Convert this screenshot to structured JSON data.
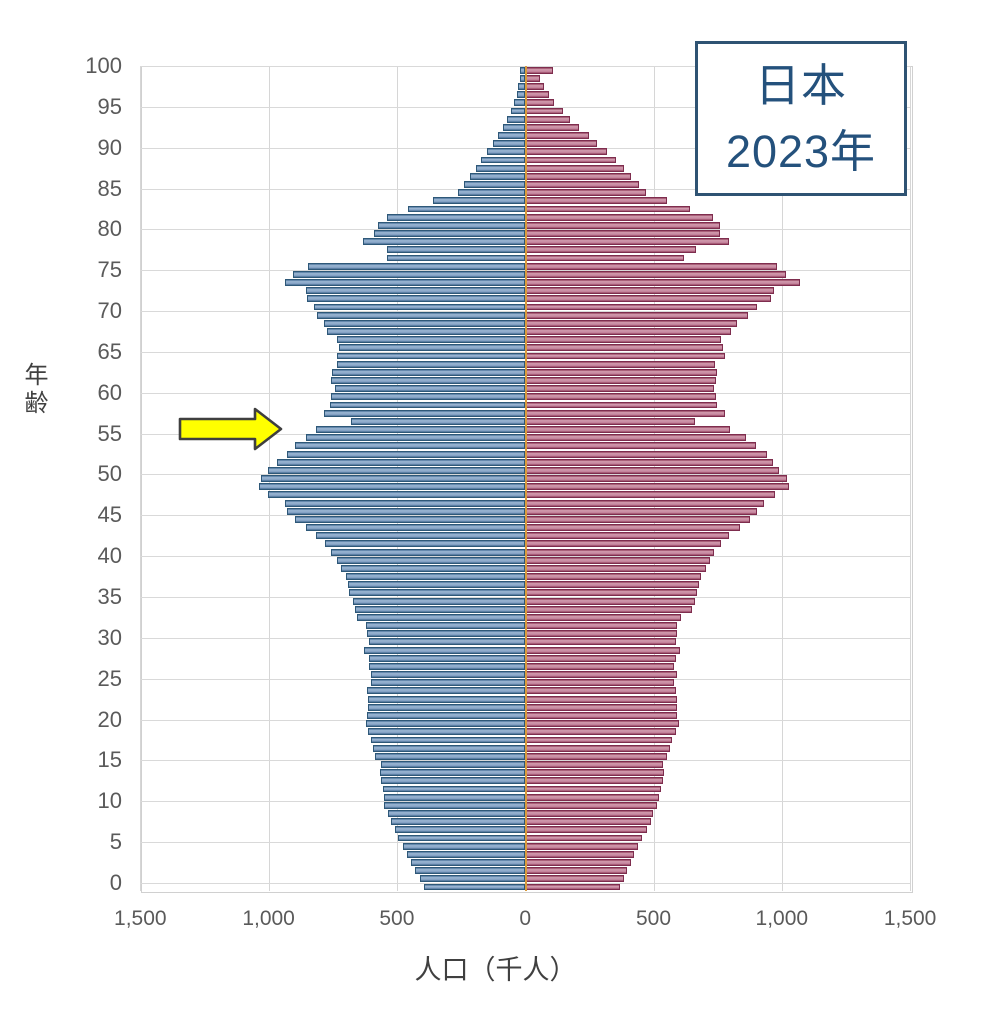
{
  "title_box": {
    "line1": "日本",
    "line2": "2023年"
  },
  "y_axis": {
    "label": "年齢",
    "ticks": [
      "100",
      "95",
      "90",
      "85",
      "80",
      "75",
      "70",
      "65",
      "60",
      "55",
      "50",
      "45",
      "40",
      "35",
      "30",
      "25",
      "20",
      "15",
      "10",
      "5",
      "0"
    ]
  },
  "x_axis": {
    "label": "人口（千人）",
    "ticks": [
      "1,500",
      "1,000",
      "500",
      "0",
      "500",
      "1,000",
      "1,500"
    ]
  },
  "annotations": {
    "arrow": {
      "shape": "block-arrow-right",
      "fill": "#ffff00",
      "outline": "#3f3f3f",
      "points_at_age": 57
    }
  },
  "colors": {
    "male_fill": "#8eaacb",
    "male_border": "#2e5878",
    "female_fill": "#c98ca3",
    "female_border": "#7e2d4e",
    "center_axis": "#d99b3c",
    "gridline": "#d9d9d9",
    "title_text": "#24517c",
    "title_border": "#2f5373",
    "tick_text": "#5a5a5a"
  },
  "chart_data": {
    "type": "bar",
    "variant": "population-pyramid",
    "title": "日本 2023年",
    "xlabel": "人口（千人）",
    "ylabel": "年齢",
    "unit": "thousands of persons",
    "age_min": 0,
    "age_max": 100,
    "x_range_each_side": [
      0,
      1500
    ],
    "grid": true,
    "series": [
      {
        "name": "male",
        "side": "left",
        "values_by_age_0_to_100": [
          395,
          412,
          428,
          445,
          462,
          477,
          494,
          507,
          523,
          536,
          551,
          550,
          555,
          562,
          568,
          564,
          584,
          594,
          603,
          613,
          620,
          617,
          613,
          613,
          616,
          603,
          600,
          607,
          607,
          629,
          607,
          617,
          619,
          655,
          663,
          672,
          685,
          691,
          700,
          717,
          733,
          756,
          782,
          814,
          853,
          897,
          930,
          936,
          1001,
          1037,
          1030,
          1001,
          969,
          930,
          897,
          853,
          814,
          680,
          786,
          760,
          756,
          740,
          756,
          753,
          733,
          733,
          725,
          733,
          772,
          783,
          813,
          824,
          849,
          856,
          935,
          905,
          845,
          538,
          538,
          633,
          590,
          574,
          538,
          458,
          359,
          264,
          238,
          215,
          193,
          171,
          148,
          124,
          106,
          87,
          70,
          57,
          43,
          34,
          27,
          19,
          20
        ]
      },
      {
        "name": "female",
        "side": "right",
        "values_by_age_0_to_100": [
          368,
          385,
          396,
          411,
          424,
          441,
          457,
          473,
          489,
          499,
          515,
          521,
          531,
          538,
          541,
          538,
          554,
          564,
          573,
          586,
          599,
          592,
          590,
          590,
          586,
          580,
          590,
          582,
          586,
          603,
          586,
          590,
          593,
          606,
          651,
          660,
          671,
          677,
          687,
          703,
          722,
          735,
          764,
          794,
          836,
          875,
          905,
          930,
          975,
          1030,
          1020,
          990,
          966,
          944,
          901,
          860,
          800,
          660,
          778,
          748,
          742,
          735,
          745,
          748,
          738,
          780,
          770,
          765,
          803,
          825,
          869,
          905,
          960,
          971,
          1070,
          1015,
          980,
          620,
          665,
          795,
          758,
          759,
          733,
          642,
          551,
          472,
          442,
          412,
          384,
          353,
          319,
          281,
          249,
          210,
          176,
          148,
          111,
          92,
          75,
          58,
          110
        ]
      }
    ]
  }
}
